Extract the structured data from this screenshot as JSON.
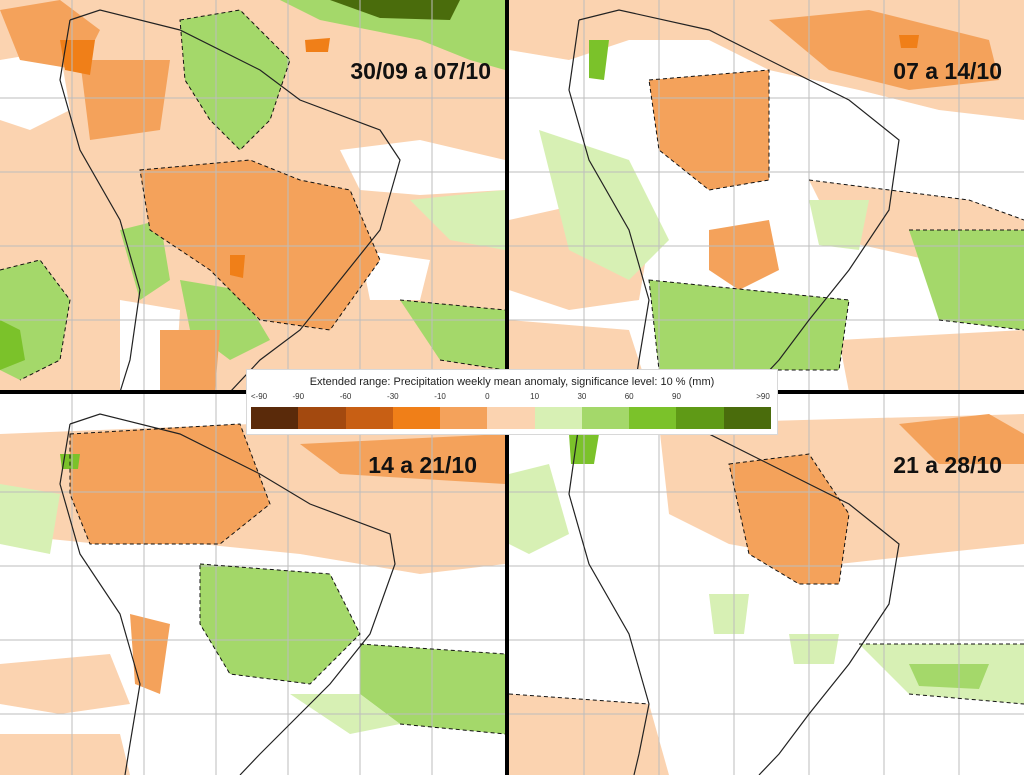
{
  "panels": [
    {
      "id": "p1",
      "title": "30/09 a 07/10"
    },
    {
      "id": "p2",
      "title": "07 a 14/10"
    },
    {
      "id": "p3",
      "title": "14 a 21/10"
    },
    {
      "id": "p4",
      "title": "21 a 28/10"
    }
  ],
  "legend": {
    "title": "Extended range: Precipitation weekly mean anomaly, significance level: 10 % (mm)",
    "ticks": [
      "<-90",
      "-90",
      "-60",
      "-30",
      "-10",
      "0",
      "10",
      "30",
      "60",
      "90",
      ">90"
    ],
    "colors": [
      "#5a2a0a",
      "#a3490f",
      "#c85f14",
      "#f07f18",
      "#f4a25b",
      "#fbd3b0",
      "#d7f0b4",
      "#a4d86a",
      "#7bc22a",
      "#5f9a16",
      "#4a6c0c"
    ]
  },
  "colors": {
    "dry_light": "#fbd3b0",
    "dry_medium": "#f4a25b",
    "dry_strong": "#f07f18",
    "wet_light": "#d7f0b4",
    "wet_medium": "#a4d86a",
    "wet_strong": "#7bc22a",
    "wet_dark": "#4a6c0c"
  }
}
